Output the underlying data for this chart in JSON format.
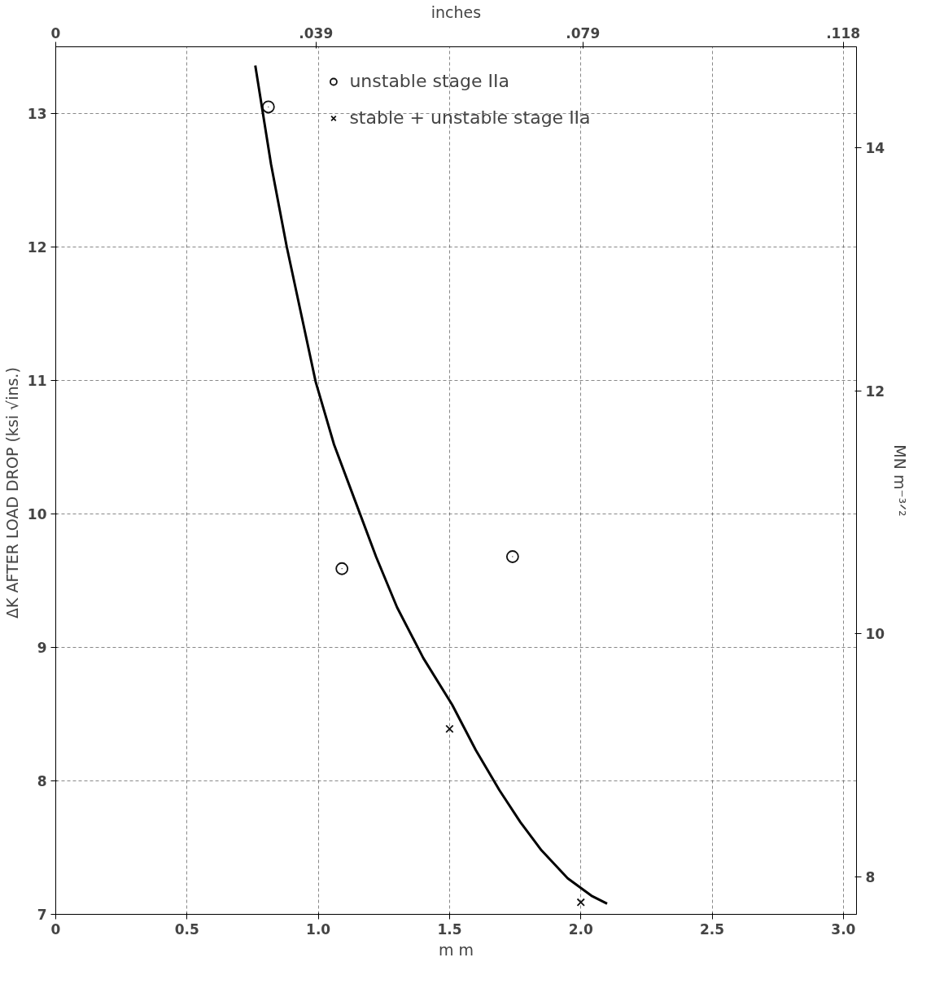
{
  "chart_data": {
    "type": "scatter",
    "xlabel": "m m",
    "x2label": "inches",
    "ylabel": "ΔK  AFTER  LOAD  DROP  (ksi  √ins.)",
    "y2label": "MN m⁻³ᐟ²",
    "xlim": [
      0,
      3.05
    ],
    "ylim": [
      7,
      13.5
    ],
    "xticks": [
      0,
      {
        "value": 0.5,
        "label": "0.5"
      },
      {
        "value": 1.0,
        "label": "1.0"
      },
      {
        "value": 1.5,
        "label": "1.5"
      },
      {
        "value": 2.0,
        "label": "2.0"
      },
      {
        "value": 2.5,
        "label": "2.5"
      },
      {
        "value": 3.0,
        "label": "3.0"
      }
    ],
    "yticks": [
      7,
      8,
      9,
      10,
      11,
      12,
      13
    ],
    "x2lim": [
      0,
      0.12
    ],
    "x2ticks": [
      0,
      {
        "value": 0.039,
        "label": ".039"
      },
      {
        "value": 0.079,
        "label": ".079"
      },
      {
        "value": 0.118,
        "label": ".118"
      }
    ],
    "y2lim": [
      7.69,
      14.83
    ],
    "y2ticks": [
      8,
      10,
      12,
      14
    ],
    "grid": true,
    "legend": "top",
    "series": [
      {
        "name": "unstable stage IIa",
        "color": "#111111",
        "marker": "circle",
        "x": [
          0.81,
          1.09,
          1.74
        ],
        "values": [
          13.05,
          9.59,
          9.68
        ]
      },
      {
        "name": "stable + unstable stage IIa",
        "color": "#111111",
        "marker": "cross",
        "x": [
          1.5,
          2.0
        ],
        "values": [
          8.39,
          7.09
        ]
      },
      {
        "type": "line",
        "color": "#000000",
        "x": [
          0.76,
          0.82,
          0.88,
          0.94,
          0.99,
          1.06,
          1.14,
          1.22,
          1.3,
          1.4,
          1.51,
          1.6,
          1.69,
          1.77,
          1.85,
          1.95,
          2.04,
          2.1
        ],
        "values": [
          13.36,
          12.62,
          12.0,
          11.45,
          10.99,
          10.52,
          10.1,
          9.68,
          9.3,
          8.92,
          8.57,
          8.23,
          7.93,
          7.69,
          7.48,
          7.27,
          7.14,
          7.08
        ]
      }
    ]
  }
}
